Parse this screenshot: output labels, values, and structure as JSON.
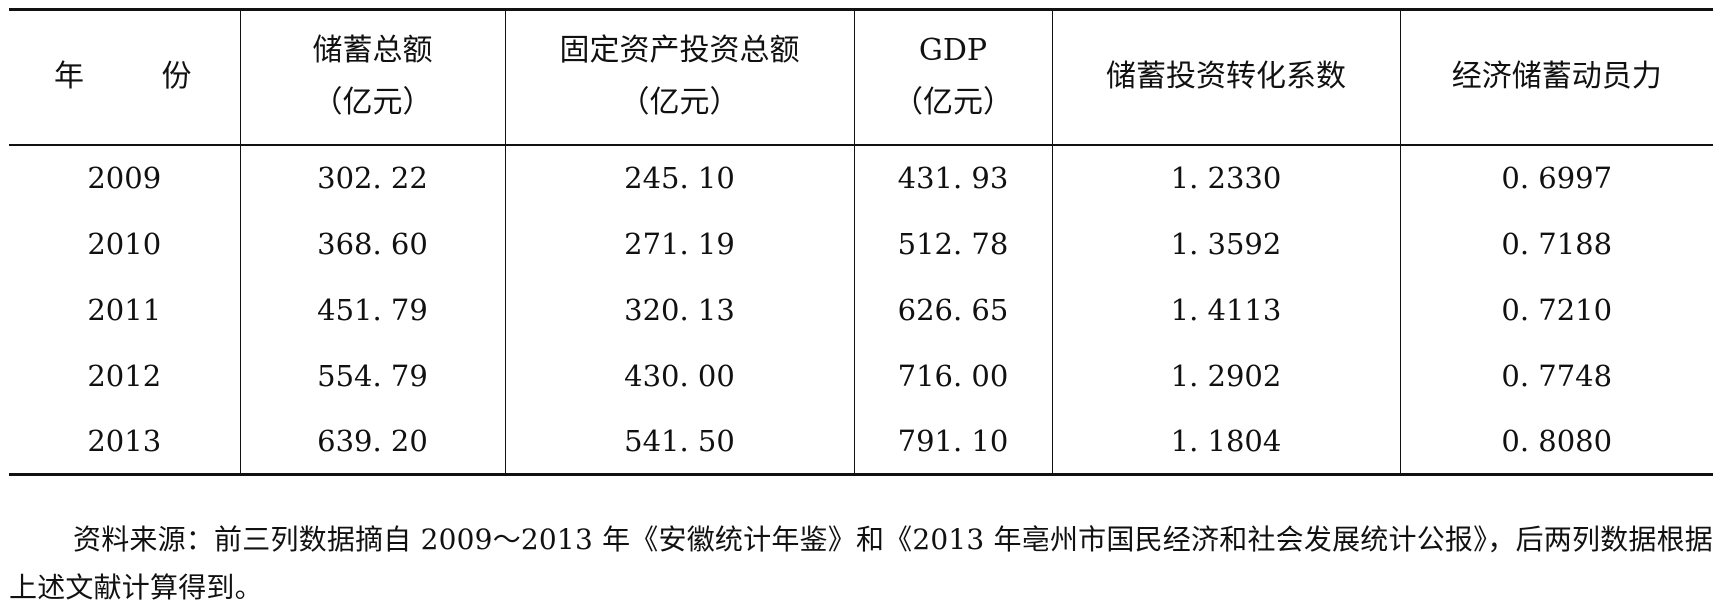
{
  "table": {
    "headers": {
      "year": {
        "char1": "年",
        "char2": "份"
      },
      "savings": {
        "line1": "储蓄总额",
        "line2": "（亿元）"
      },
      "investment": {
        "line1": "固定资产投资总额",
        "line2": "（亿元）"
      },
      "gdp": {
        "line1": "GDP",
        "line2": "（亿元）"
      },
      "conversion": {
        "line1": "储蓄投资转化系数"
      },
      "mobilization": {
        "line1": "经济储蓄动员力"
      }
    },
    "rows": [
      {
        "year": "2009",
        "savings": "302. 22",
        "investment": "245. 10",
        "gdp": "431. 93",
        "conversion": "1. 2330",
        "mobilization": "0. 6997"
      },
      {
        "year": "2010",
        "savings": "368. 60",
        "investment": "271. 19",
        "gdp": "512. 78",
        "conversion": "1. 3592",
        "mobilization": "0. 7188"
      },
      {
        "year": "2011",
        "savings": "451. 79",
        "investment": "320. 13",
        "gdp": "626. 65",
        "conversion": "1. 4113",
        "mobilization": "0. 7210"
      },
      {
        "year": "2012",
        "savings": "554. 79",
        "investment": "430. 00",
        "gdp": "716. 00",
        "conversion": "1. 2902",
        "mobilization": "0. 7748"
      },
      {
        "year": "2013",
        "savings": "639. 20",
        "investment": "541. 50",
        "gdp": "791. 10",
        "conversion": "1. 1804",
        "mobilization": "0. 8080"
      }
    ]
  },
  "source_note": "资料来源：前三列数据摘自 2009～2013 年《安徽统计年鉴》和《2013 年亳州市国民经济和社会发展统计公报》，后两列数据根据上述文献计算得到。"
}
